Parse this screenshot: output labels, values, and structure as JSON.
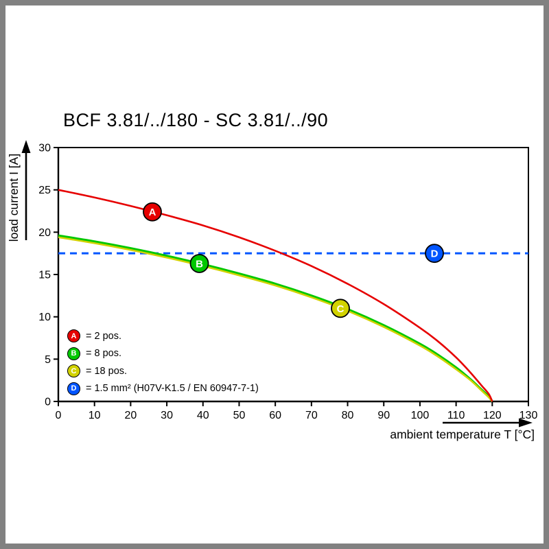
{
  "frame": {
    "border_color": "#818181"
  },
  "chart_data": {
    "type": "line",
    "title": "BCF 3.81/../180 - SC 3.81/../90",
    "xlabel": "ambient temperature T [°C]",
    "ylabel": "load current I [A]",
    "xlim": [
      0,
      130
    ],
    "ylim": [
      0,
      30
    ],
    "xticks": [
      0,
      10,
      20,
      30,
      40,
      50,
      60,
      70,
      80,
      90,
      100,
      110,
      120,
      130
    ],
    "yticks": [
      0,
      5,
      10,
      15,
      20,
      25,
      30
    ],
    "grid": false,
    "legend_position": "bottom-left-inside",
    "series": [
      {
        "name": "A",
        "legend_label": "= 2 pos.",
        "color": "#e60000",
        "line_style": "solid",
        "points": [
          [
            0,
            25
          ],
          [
            10,
            24.1
          ],
          [
            20,
            23.1
          ],
          [
            30,
            22.0
          ],
          [
            40,
            20.8
          ],
          [
            50,
            19.4
          ],
          [
            60,
            17.8
          ],
          [
            70,
            16.0
          ],
          [
            80,
            13.9
          ],
          [
            90,
            11.5
          ],
          [
            100,
            8.7
          ],
          [
            105,
            7.1
          ],
          [
            110,
            5.2
          ],
          [
            114,
            3.4
          ],
          [
            117,
            1.9
          ],
          [
            119,
            0.9
          ],
          [
            120,
            0
          ]
        ]
      },
      {
        "name": "B",
        "legend_label": "= 8 pos.",
        "color": "#00c800",
        "line_style": "solid",
        "points": [
          [
            0,
            19.6
          ],
          [
            10,
            18.9
          ],
          [
            20,
            18.1
          ],
          [
            30,
            17.2
          ],
          [
            40,
            16.2
          ],
          [
            50,
            15.1
          ],
          [
            60,
            13.9
          ],
          [
            70,
            12.5
          ],
          [
            80,
            10.9
          ],
          [
            90,
            9.0
          ],
          [
            100,
            6.8
          ],
          [
            105,
            5.5
          ],
          [
            110,
            4.0
          ],
          [
            114,
            2.6
          ],
          [
            117,
            1.4
          ],
          [
            119,
            0.6
          ],
          [
            120,
            0
          ]
        ]
      },
      {
        "name": "C",
        "legend_label": "= 18 pos.",
        "color": "#d2d200",
        "line_style": "solid",
        "points": [
          [
            0,
            19.4
          ],
          [
            10,
            18.7
          ],
          [
            20,
            17.9
          ],
          [
            30,
            17.0
          ],
          [
            40,
            16.0
          ],
          [
            50,
            14.9
          ],
          [
            60,
            13.7
          ],
          [
            70,
            12.3
          ],
          [
            80,
            10.7
          ],
          [
            90,
            8.8
          ],
          [
            100,
            6.6
          ],
          [
            105,
            5.3
          ],
          [
            110,
            3.8
          ],
          [
            114,
            2.5
          ],
          [
            117,
            1.3
          ],
          [
            119,
            0.5
          ],
          [
            120,
            0
          ]
        ]
      },
      {
        "name": "D",
        "legend_label": "= 1.5 mm² (H07V-K1.5 / EN 60947-7-1)",
        "color": "#0055ff",
        "line_style": "dashed",
        "points": [
          [
            0,
            17.5
          ],
          [
            130,
            17.5
          ]
        ]
      }
    ],
    "markers": [
      {
        "series": "A",
        "x": 26,
        "y": 22.4
      },
      {
        "series": "B",
        "x": 39,
        "y": 16.3
      },
      {
        "series": "C",
        "x": 78,
        "y": 11.0
      },
      {
        "series": "D",
        "x": 104,
        "y": 17.5
      }
    ]
  }
}
